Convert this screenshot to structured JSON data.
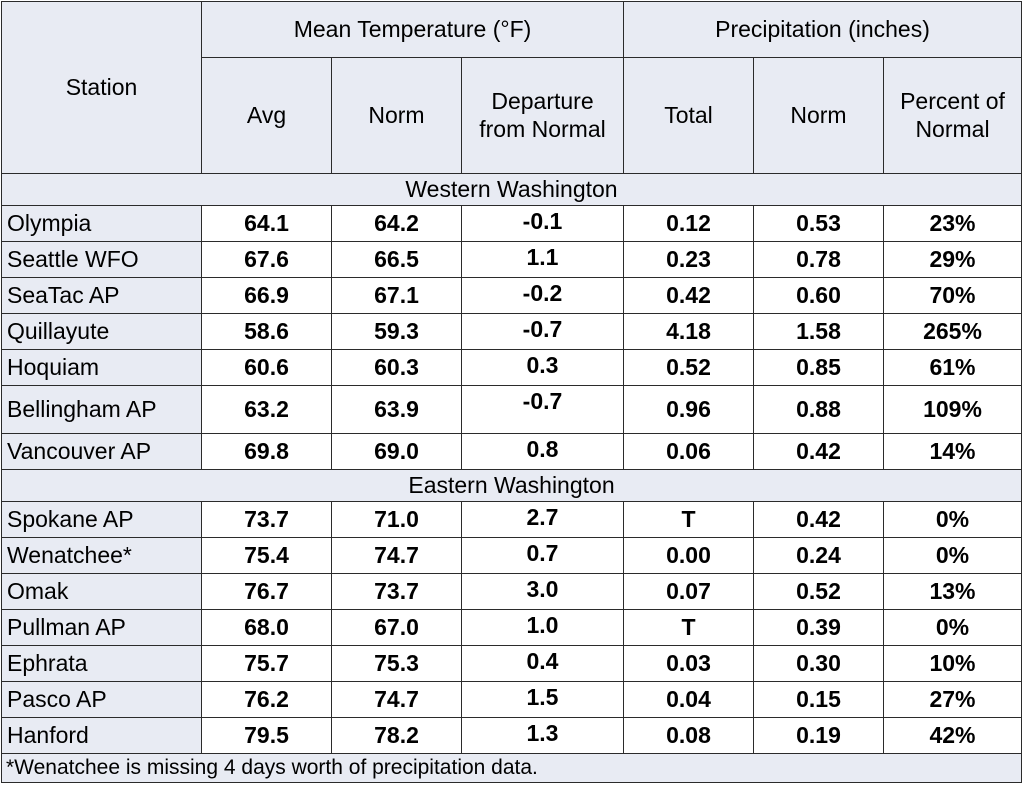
{
  "headers": {
    "station": "Station",
    "temp_group": "Mean Temperature (°F)",
    "precip_group": "Precipitation (inches)",
    "avg": "Avg",
    "temp_norm": "Norm",
    "departure": "Departure from Normal",
    "total": "Total",
    "precip_norm": "Norm",
    "percent": "Percent of Normal"
  },
  "regions": [
    {
      "name": "Western Washington",
      "rows": [
        {
          "station": "Olympia",
          "avg": "64.1",
          "norm": "64.2",
          "dep": "-0.1",
          "total": "0.12",
          "pnorm": "0.53",
          "pct": "23%"
        },
        {
          "station": "Seattle WFO",
          "avg": "67.6",
          "norm": "66.5",
          "dep": "1.1",
          "total": "0.23",
          "pnorm": "0.78",
          "pct": "29%"
        },
        {
          "station": "SeaTac AP",
          "avg": "66.9",
          "norm": "67.1",
          "dep": "-0.2",
          "total": "0.42",
          "pnorm": "0.60",
          "pct": "70%"
        },
        {
          "station": "Quillayute",
          "avg": "58.6",
          "norm": "59.3",
          "dep": "-0.7",
          "total": "4.18",
          "pnorm": "1.58",
          "pct": "265%"
        },
        {
          "station": "Hoquiam",
          "avg": "60.6",
          "norm": "60.3",
          "dep": "0.3",
          "total": "0.52",
          "pnorm": "0.85",
          "pct": "61%"
        },
        {
          "station": "Bellingham AP",
          "avg": "63.2",
          "norm": "63.9",
          "dep": "-0.7",
          "total": "0.96",
          "pnorm": "0.88",
          "pct": "109%"
        },
        {
          "station": "Vancouver AP",
          "avg": "69.8",
          "norm": "69.0",
          "dep": "0.8",
          "total": "0.06",
          "pnorm": "0.42",
          "pct": "14%"
        }
      ]
    },
    {
      "name": "Eastern Washington",
      "rows": [
        {
          "station": "Spokane AP",
          "avg": "73.7",
          "norm": "71.0",
          "dep": "2.7",
          "total": "T",
          "pnorm": "0.42",
          "pct": "0%"
        },
        {
          "station": "Wenatchee*",
          "avg": "75.4",
          "norm": "74.7",
          "dep": "0.7",
          "total": "0.00",
          "pnorm": "0.24",
          "pct": "0%"
        },
        {
          "station": "Omak",
          "avg": "76.7",
          "norm": "73.7",
          "dep": "3.0",
          "total": "0.07",
          "pnorm": "0.52",
          "pct": "13%"
        },
        {
          "station": "Pullman AP",
          "avg": "68.0",
          "norm": "67.0",
          "dep": "1.0",
          "total": "T",
          "pnorm": "0.39",
          "pct": "0%"
        },
        {
          "station": "Ephrata",
          "avg": "75.7",
          "norm": "75.3",
          "dep": "0.4",
          "total": "0.03",
          "pnorm": "0.30",
          "pct": "10%"
        },
        {
          "station": "Pasco AP",
          "avg": "76.2",
          "norm": "74.7",
          "dep": "1.5",
          "total": "0.04",
          "pnorm": "0.15",
          "pct": "27%"
        },
        {
          "station": "Hanford",
          "avg": "79.5",
          "norm": "78.2",
          "dep": "1.3",
          "total": "0.08",
          "pnorm": "0.19",
          "pct": "42%"
        }
      ]
    }
  ],
  "footnote": "*Wenatchee is missing 4 days worth of precipitation data."
}
